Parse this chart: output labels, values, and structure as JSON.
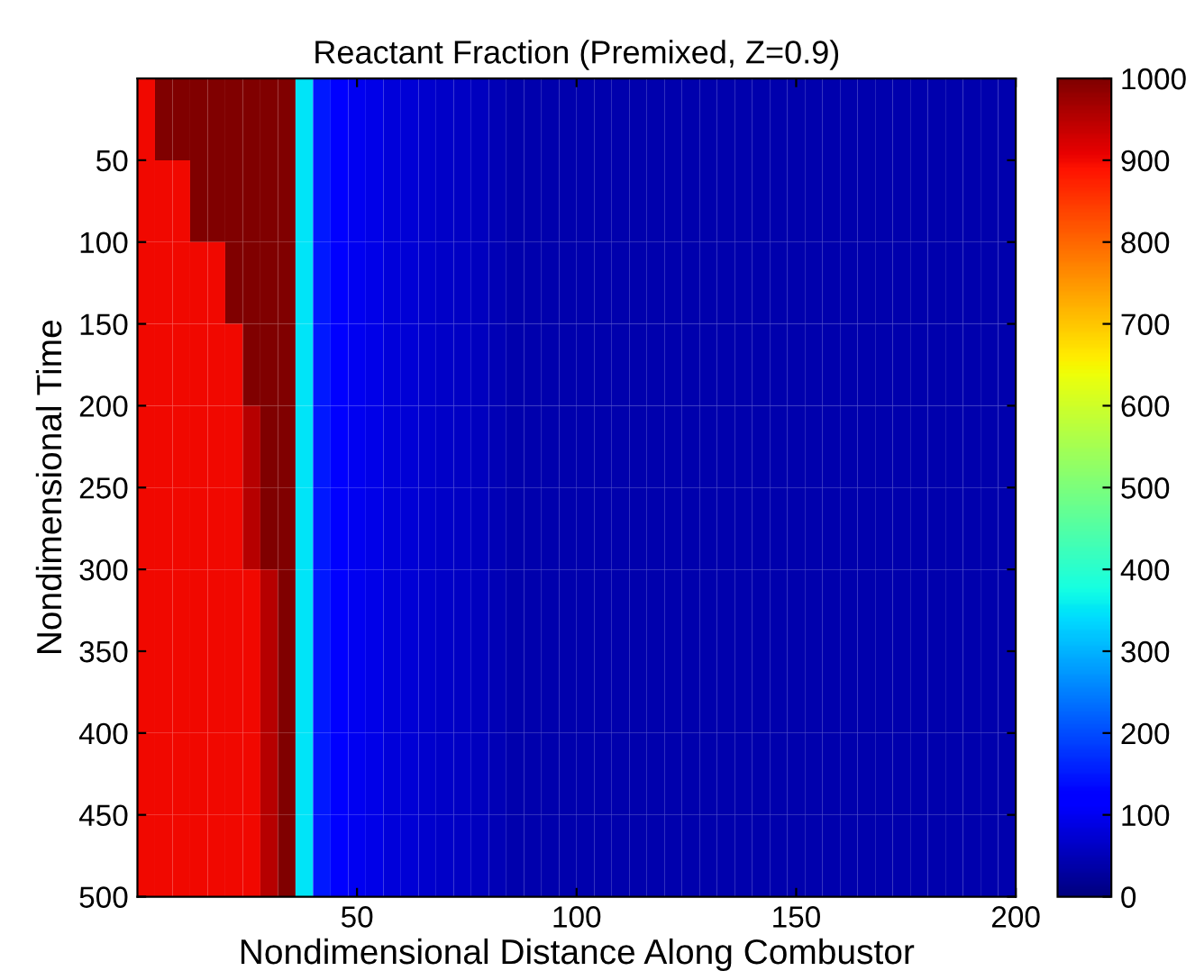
{
  "chart_data": {
    "type": "heatmap",
    "title": "Reactant Fraction (Premixed, Z=0.9)",
    "xlabel": "Nondimensional Distance Along Combustor",
    "ylabel": "Nondimensional Time",
    "x": [
      2,
      6,
      10,
      14,
      18,
      22,
      26,
      30,
      34,
      38,
      42,
      46,
      50,
      54,
      58,
      62,
      66,
      70,
      74,
      78,
      82,
      86,
      90,
      94,
      98,
      102,
      106,
      110,
      114,
      118,
      122,
      126,
      130,
      134,
      138,
      142,
      146,
      150,
      154,
      158,
      162,
      166,
      170,
      174,
      178,
      182,
      186,
      190,
      194,
      198
    ],
    "y": [
      25,
      75,
      125,
      175,
      225,
      275,
      325,
      375,
      425,
      475
    ],
    "cells": [
      [
        900,
        1000,
        1000,
        1000,
        1000,
        1000,
        1000,
        1000,
        1000,
        350,
        150,
        110,
        100,
        90,
        80,
        75,
        70,
        65,
        60,
        55,
        50,
        40,
        40,
        40,
        40,
        40,
        40,
        40,
        40,
        40,
        40,
        40,
        40,
        40,
        40,
        40,
        40,
        40,
        40,
        40,
        40,
        40,
        40,
        40,
        40,
        40,
        40,
        40,
        40,
        40
      ],
      [
        900,
        900,
        900,
        1000,
        1000,
        1000,
        1000,
        1000,
        1000,
        350,
        150,
        110,
        100,
        90,
        80,
        75,
        70,
        65,
        60,
        55,
        50,
        40,
        40,
        40,
        40,
        40,
        40,
        40,
        40,
        40,
        40,
        40,
        40,
        40,
        40,
        40,
        40,
        40,
        40,
        40,
        40,
        40,
        40,
        40,
        40,
        40,
        40,
        40,
        40,
        40
      ],
      [
        900,
        900,
        900,
        900,
        900,
        1000,
        1000,
        1000,
        1000,
        350,
        150,
        110,
        100,
        90,
        80,
        75,
        70,
        65,
        60,
        55,
        50,
        40,
        40,
        40,
        40,
        40,
        40,
        40,
        40,
        40,
        40,
        40,
        40,
        40,
        40,
        40,
        40,
        40,
        40,
        40,
        40,
        40,
        40,
        40,
        40,
        40,
        40,
        40,
        40,
        40
      ],
      [
        900,
        900,
        900,
        900,
        900,
        900,
        1000,
        1000,
        1000,
        350,
        150,
        110,
        100,
        90,
        80,
        75,
        70,
        65,
        60,
        55,
        50,
        40,
        40,
        40,
        40,
        40,
        40,
        40,
        40,
        40,
        40,
        40,
        40,
        40,
        40,
        40,
        40,
        40,
        40,
        40,
        40,
        40,
        40,
        40,
        40,
        40,
        40,
        40,
        40,
        40
      ],
      [
        900,
        900,
        900,
        900,
        900,
        900,
        950,
        1000,
        1000,
        350,
        150,
        110,
        100,
        90,
        80,
        75,
        70,
        65,
        60,
        55,
        50,
        40,
        40,
        40,
        40,
        40,
        40,
        40,
        40,
        40,
        40,
        40,
        40,
        40,
        40,
        40,
        40,
        40,
        40,
        40,
        40,
        40,
        40,
        40,
        40,
        40,
        40,
        40,
        40,
        40
      ],
      [
        900,
        900,
        900,
        900,
        900,
        900,
        950,
        1000,
        1000,
        350,
        150,
        110,
        100,
        90,
        80,
        75,
        70,
        65,
        60,
        55,
        50,
        40,
        40,
        40,
        40,
        40,
        40,
        40,
        40,
        40,
        40,
        40,
        40,
        40,
        40,
        40,
        40,
        40,
        40,
        40,
        40,
        40,
        40,
        40,
        40,
        40,
        40,
        40,
        40,
        40
      ],
      [
        900,
        900,
        900,
        900,
        900,
        900,
        900,
        950,
        1000,
        350,
        150,
        110,
        100,
        90,
        80,
        75,
        70,
        65,
        60,
        55,
        50,
        40,
        40,
        40,
        40,
        40,
        40,
        40,
        40,
        40,
        40,
        40,
        40,
        40,
        40,
        40,
        40,
        40,
        40,
        40,
        40,
        40,
        40,
        40,
        40,
        40,
        40,
        40,
        40,
        40
      ],
      [
        900,
        900,
        900,
        900,
        900,
        900,
        900,
        950,
        1000,
        350,
        150,
        110,
        100,
        90,
        80,
        75,
        70,
        65,
        60,
        55,
        50,
        40,
        40,
        40,
        40,
        40,
        40,
        40,
        40,
        40,
        40,
        40,
        40,
        40,
        40,
        40,
        40,
        40,
        40,
        40,
        40,
        40,
        40,
        40,
        40,
        40,
        40,
        40,
        40,
        40
      ],
      [
        900,
        900,
        900,
        900,
        900,
        900,
        900,
        950,
        1000,
        350,
        150,
        110,
        100,
        90,
        80,
        75,
        70,
        65,
        60,
        55,
        50,
        40,
        40,
        40,
        40,
        40,
        40,
        40,
        40,
        40,
        40,
        40,
        40,
        40,
        40,
        40,
        40,
        40,
        40,
        40,
        40,
        40,
        40,
        40,
        40,
        40,
        40,
        40,
        40,
        40
      ],
      [
        900,
        900,
        900,
        900,
        900,
        900,
        900,
        950,
        1000,
        350,
        150,
        110,
        100,
        90,
        80,
        75,
        70,
        65,
        60,
        55,
        50,
        40,
        40,
        40,
        40,
        40,
        40,
        40,
        40,
        40,
        40,
        40,
        40,
        40,
        40,
        40,
        40,
        40,
        40,
        40,
        40,
        40,
        40,
        40,
        40,
        40,
        40,
        40,
        40,
        40
      ]
    ],
    "xlim": [
      0,
      200
    ],
    "xticks": [
      50,
      100,
      150,
      200
    ],
    "ylim": [
      500,
      0
    ],
    "yticks": [
      50,
      100,
      150,
      200,
      250,
      300,
      350,
      400,
      450,
      500
    ],
    "clim": [
      0,
      1000
    ],
    "cticks": [
      0,
      100,
      200,
      300,
      400,
      500,
      600,
      700,
      800,
      900,
      1000
    ]
  }
}
